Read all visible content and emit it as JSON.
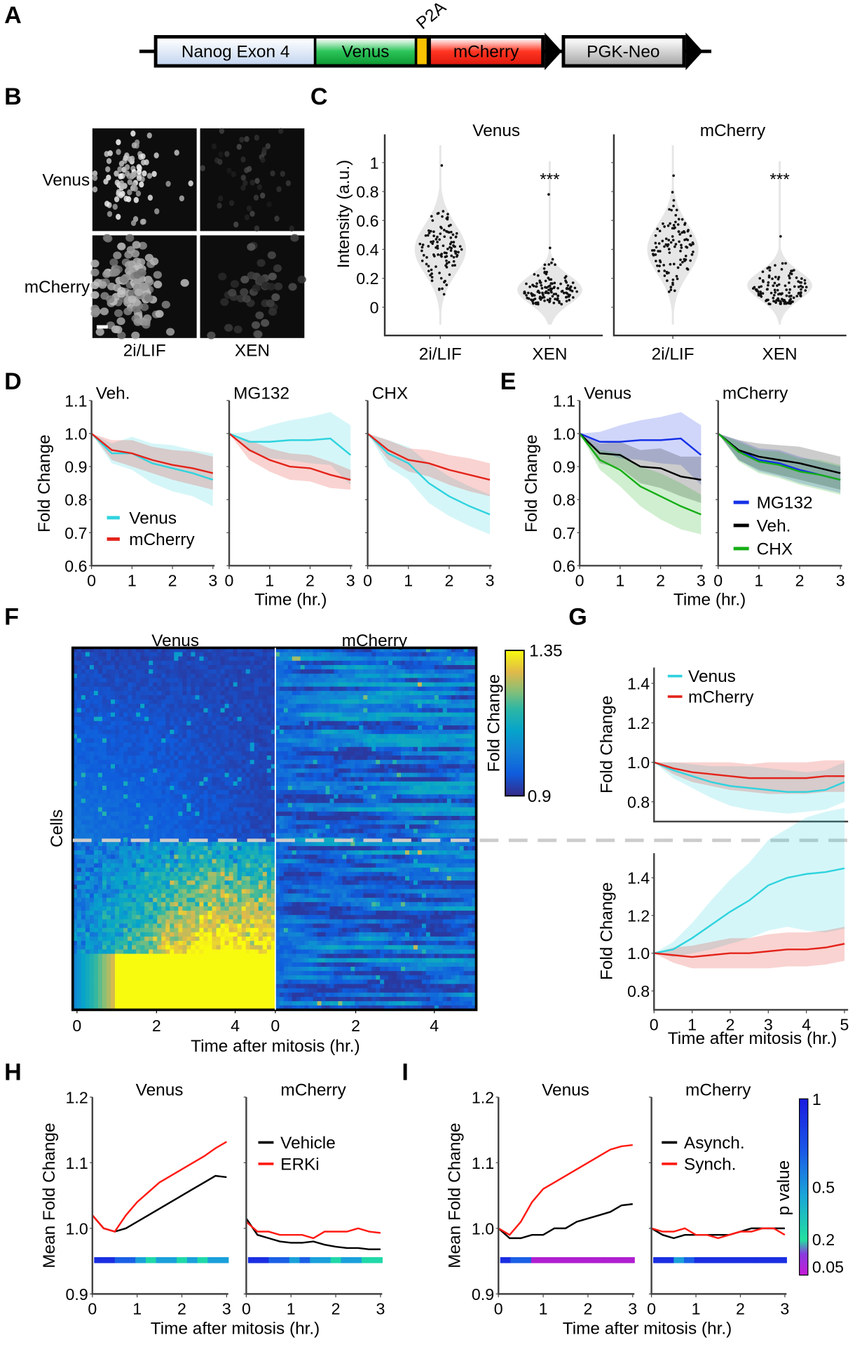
{
  "panel_labels": [
    "A",
    "B",
    "C",
    "D",
    "E",
    "F",
    "G",
    "H",
    "I"
  ],
  "construct": {
    "segments": [
      {
        "label": "Nanog Exon 4",
        "color": "#dce7f6"
      },
      {
        "label": "Venus",
        "color": "#1fb24a"
      },
      {
        "label": "",
        "color": "#f7c200"
      },
      {
        "label": "mCherry",
        "color": "#ff2b1c"
      }
    ],
    "p2a_label": "P2A",
    "neo_label": "PGK-Neo",
    "neo_color": "#cfcfcf"
  },
  "images": {
    "row_labels": [
      "Venus",
      "mCherry"
    ],
    "col_labels": [
      "2i/LIF",
      "XEN"
    ]
  },
  "colors": {
    "venus": "#2fd3de",
    "mcherry": "#e3241b",
    "mg132": "#1530e6",
    "veh": "#000000",
    "chx": "#15ae15",
    "dash": "#cccccc"
  },
  "chart_data": [
    {
      "id": "C",
      "type": "violin",
      "ylabel": "Intensity (a.u.)",
      "ylim": [
        -0.15,
        1.15
      ],
      "yticks": [
        "0",
        "0.2",
        "0.4",
        "0.6",
        "0.8",
        "1"
      ],
      "panels": [
        {
          "title": "Venus",
          "categories": [
            "2i/LIF",
            "XEN"
          ],
          "median": [
            0.4,
            0.12
          ],
          "max": [
            0.98,
            0.78
          ],
          "annotation": "***"
        },
        {
          "title": "mCherry",
          "categories": [
            "2i/LIF",
            "XEN"
          ],
          "median": [
            0.4,
            0.15
          ],
          "max": [
            0.91,
            0.49
          ],
          "annotation": "***"
        }
      ]
    },
    {
      "id": "D",
      "type": "line",
      "ylabel": "Fold Change",
      "xlabel": "Time (hr.)",
      "ylim": [
        0.6,
        1.1
      ],
      "yticks": [
        "1.1",
        "1.0",
        "0.9",
        "0.8",
        "0.7",
        "0.6"
      ],
      "xticks": [
        "0",
        "1",
        "2",
        "3"
      ],
      "x": [
        0,
        0.5,
        1,
        1.5,
        2,
        2.5,
        3
      ],
      "legend": [
        "Venus",
        "mCherry"
      ],
      "panels": [
        {
          "title": "Veh.",
          "series": [
            {
              "name": "Venus",
              "values": [
                1,
                0.94,
                0.94,
                0.91,
                0.895,
                0.88,
                0.86
              ],
              "sd": [
                0,
                0.03,
                0.05,
                0.06,
                0.07,
                0.07,
                0.08
              ]
            },
            {
              "name": "mCherry",
              "values": [
                1,
                0.95,
                0.94,
                0.92,
                0.905,
                0.895,
                0.88
              ],
              "sd": [
                0,
                0.03,
                0.04,
                0.04,
                0.045,
                0.05,
                0.05
              ]
            }
          ]
        },
        {
          "title": "MG132",
          "series": [
            {
              "name": "Venus",
              "values": [
                1,
                0.975,
                0.975,
                0.98,
                0.98,
                0.985,
                0.935
              ],
              "sd": [
                0,
                0.03,
                0.05,
                0.06,
                0.07,
                0.08,
                0.09
              ]
            },
            {
              "name": "mCherry",
              "values": [
                1,
                0.95,
                0.92,
                0.9,
                0.895,
                0.875,
                0.86
              ],
              "sd": [
                0,
                0.03,
                0.035,
                0.04,
                0.04,
                0.04,
                0.03
              ]
            }
          ]
        },
        {
          "title": "CHX",
          "series": [
            {
              "name": "Venus",
              "values": [
                1,
                0.94,
                0.91,
                0.85,
                0.81,
                0.78,
                0.755
              ],
              "sd": [
                0,
                0.04,
                0.05,
                0.06,
                0.06,
                0.06,
                0.06
              ]
            },
            {
              "name": "mCherry",
              "values": [
                1,
                0.95,
                0.92,
                0.91,
                0.89,
                0.875,
                0.86
              ],
              "sd": [
                0,
                0.03,
                0.035,
                0.04,
                0.045,
                0.05,
                0.05
              ]
            }
          ]
        }
      ]
    },
    {
      "id": "E",
      "type": "line",
      "ylabel": "Fold Change",
      "xlabel": "Time (hr.)",
      "ylim": [
        0.6,
        1.1
      ],
      "yticks": [
        "1.1",
        "1.0",
        "0.9",
        "0.8",
        "0.7",
        "0.6"
      ],
      "xticks": [
        "0",
        "1",
        "2",
        "3"
      ],
      "x": [
        0,
        0.5,
        1,
        1.5,
        2,
        2.5,
        3
      ],
      "legend": [
        "MG132",
        "Veh.",
        "CHX"
      ],
      "panels": [
        {
          "title": "Venus",
          "series": [
            {
              "name": "MG132",
              "values": [
                1,
                0.975,
                0.975,
                0.98,
                0.98,
                0.985,
                0.935
              ],
              "sd": [
                0,
                0.03,
                0.05,
                0.06,
                0.07,
                0.08,
                0.09
              ]
            },
            {
              "name": "Veh.",
              "values": [
                1,
                0.94,
                0.935,
                0.9,
                0.895,
                0.87,
                0.86
              ],
              "sd": [
                0,
                0.03,
                0.04,
                0.05,
                0.06,
                0.06,
                0.07
              ]
            },
            {
              "name": "CHX",
              "values": [
                1,
                0.92,
                0.89,
                0.84,
                0.81,
                0.78,
                0.755
              ],
              "sd": [
                0,
                0.03,
                0.05,
                0.06,
                0.07,
                0.07,
                0.06
              ]
            }
          ]
        },
        {
          "title": "mCherry",
          "series": [
            {
              "name": "MG132",
              "values": [
                1,
                0.95,
                0.92,
                0.91,
                0.89,
                0.875,
                0.86
              ],
              "sd": [
                0,
                0.03,
                0.035,
                0.04,
                0.04,
                0.04,
                0.04
              ]
            },
            {
              "name": "Veh.",
              "values": [
                1,
                0.95,
                0.93,
                0.92,
                0.91,
                0.895,
                0.88
              ],
              "sd": [
                0,
                0.03,
                0.04,
                0.045,
                0.05,
                0.05,
                0.05
              ]
            },
            {
              "name": "CHX",
              "values": [
                1,
                0.945,
                0.915,
                0.905,
                0.885,
                0.875,
                0.86
              ],
              "sd": [
                0,
                0.03,
                0.035,
                0.04,
                0.04,
                0.045,
                0.045
              ]
            }
          ]
        }
      ]
    },
    {
      "id": "F",
      "type": "heatmap",
      "columns": [
        "Venus",
        "mCherry"
      ],
      "ylabel": "Cells",
      "xlabel": "Time after mitosis (hr.)",
      "xticks": [
        "0",
        "2",
        "4"
      ],
      "colorbar_label": "Fold Change",
      "color_range": [
        0.9,
        1.35
      ],
      "colorbar_ticks": [
        "1.35",
        "0.9"
      ],
      "rows_above_divider": 45,
      "rows_below_divider": 39
    },
    {
      "id": "G",
      "type": "line",
      "ylabel": "Fold Change",
      "xlabel": "Time after mitosis (hr.)",
      "yticks": [
        "1.4",
        "1.2",
        "1.0",
        "0.8"
      ],
      "xticks": [
        "0",
        "1",
        "2",
        "3",
        "4",
        "5"
      ],
      "ylim": [
        0.7,
        1.5
      ],
      "x": [
        0,
        0.5,
        1,
        1.5,
        2,
        2.5,
        3,
        3.5,
        4,
        4.5,
        5
      ],
      "legend": [
        "Venus",
        "mCherry"
      ],
      "panels": [
        {
          "title": "",
          "series": [
            {
              "name": "Venus",
              "values": [
                1,
                0.96,
                0.93,
                0.9,
                0.88,
                0.87,
                0.86,
                0.85,
                0.85,
                0.86,
                0.9
              ],
              "sd": [
                0,
                0.04,
                0.06,
                0.08,
                0.1,
                0.11,
                0.11,
                0.11,
                0.1,
                0.1,
                0.1
              ]
            },
            {
              "name": "mCherry",
              "values": [
                1,
                0.97,
                0.95,
                0.94,
                0.93,
                0.92,
                0.92,
                0.92,
                0.92,
                0.93,
                0.93
              ],
              "sd": [
                0,
                0.03,
                0.05,
                0.06,
                0.07,
                0.07,
                0.08,
                0.08,
                0.08,
                0.08,
                0.08
              ]
            }
          ]
        },
        {
          "title": "",
          "series": [
            {
              "name": "Venus",
              "values": [
                1,
                1.02,
                1.08,
                1.15,
                1.22,
                1.28,
                1.36,
                1.4,
                1.42,
                1.43,
                1.45
              ],
              "sd": [
                0,
                0.04,
                0.08,
                0.13,
                0.17,
                0.2,
                0.24,
                0.26,
                0.3,
                0.32,
                0.32
              ]
            },
            {
              "name": "mCherry",
              "values": [
                1,
                0.99,
                0.98,
                0.99,
                1.0,
                1.0,
                1.01,
                1.02,
                1.02,
                1.03,
                1.05
              ],
              "sd": [
                0,
                0.04,
                0.06,
                0.07,
                0.08,
                0.08,
                0.09,
                0.09,
                0.09,
                0.09,
                0.09
              ]
            }
          ]
        }
      ]
    },
    {
      "id": "H",
      "type": "line",
      "ylabel": "Mean Fold Change",
      "xlabel": "Time after mitosis (hr.)",
      "yticks": [
        "1.2",
        "1.1",
        "1.0",
        "0.9"
      ],
      "xticks": [
        "0",
        "1",
        "2",
        "3"
      ],
      "ylim": [
        0.9,
        1.2
      ],
      "x": [
        0,
        0.25,
        0.5,
        0.75,
        1,
        1.25,
        1.5,
        1.75,
        2,
        2.25,
        2.5,
        2.75,
        3
      ],
      "legend": [
        "Vehicle",
        "ERKi"
      ],
      "panels": [
        {
          "title": "Venus",
          "series": [
            {
              "name": "Vehicle",
              "values": [
                1.02,
                1.0,
                0.995,
                1.0,
                1.01,
                1.02,
                1.03,
                1.04,
                1.05,
                1.06,
                1.07,
                1.08,
                1.078
              ]
            },
            {
              "name": "ERKi",
              "values": [
                1.02,
                1.0,
                0.995,
                1.02,
                1.04,
                1.055,
                1.07,
                1.08,
                1.09,
                1.1,
                1.11,
                1.122,
                1.132
              ]
            }
          ],
          "p_values": [
            0.7,
            0.6,
            0.45,
            0.35,
            0.25,
            0.2,
            0.3,
            0.22,
            0.18,
            0.25,
            0.2,
            0.3,
            0.25
          ]
        },
        {
          "title": "mCherry",
          "series": [
            {
              "name": "Vehicle",
              "values": [
                1.015,
                0.99,
                0.985,
                0.98,
                0.978,
                0.978,
                0.98,
                0.975,
                0.972,
                0.97,
                0.97,
                0.968,
                0.968
              ]
            },
            {
              "name": "ERKi",
              "values": [
                1.01,
                0.995,
                0.995,
                0.99,
                0.99,
                0.99,
                0.985,
                0.995,
                0.995,
                0.995,
                1.0,
                0.995,
                0.993
              ]
            }
          ],
          "p_values": [
            0.7,
            0.6,
            0.4,
            0.5,
            0.3,
            0.35,
            0.25,
            0.3,
            0.2,
            0.25,
            0.22,
            0.2,
            0.2
          ]
        }
      ]
    },
    {
      "id": "I",
      "type": "line",
      "ylabel": "Mean Fold Change",
      "xlabel": "Time after mitosis (hr.)",
      "yticks": [
        "1.2",
        "1.1",
        "1.0",
        "0.9"
      ],
      "xticks": [
        "0",
        "1",
        "2",
        "3"
      ],
      "ylim": [
        0.9,
        1.2
      ],
      "x": [
        0,
        0.25,
        0.5,
        0.75,
        1,
        1.25,
        1.5,
        1.75,
        2,
        2.25,
        2.5,
        2.75,
        3
      ],
      "legend": [
        "Asynch.",
        "Synch."
      ],
      "colorbar_label": "p value",
      "colorbar_ticks": [
        "1",
        "0.5",
        "0.2",
        "0.05"
      ],
      "panels": [
        {
          "title": "Venus",
          "series": [
            {
              "name": "Asynch.",
              "values": [
                1.0,
                0.985,
                0.985,
                0.99,
                0.99,
                1.0,
                1.0,
                1.01,
                1.015,
                1.02,
                1.025,
                1.035,
                1.037
              ]
            },
            {
              "name": "Synch.",
              "values": [
                1.0,
                0.99,
                1.01,
                1.04,
                1.06,
                1.07,
                1.08,
                1.09,
                1.1,
                1.11,
                1.12,
                1.125,
                1.127
              ]
            }
          ],
          "p_values": [
            0.6,
            0.5,
            0.4,
            0.04,
            0.03,
            0.03,
            0.03,
            0.03,
            0.03,
            0.03,
            0.03,
            0.03,
            0.03
          ]
        },
        {
          "title": "mCherry",
          "series": [
            {
              "name": "Asynch.",
              "values": [
                1.0,
                0.99,
                0.985,
                0.99,
                0.99,
                0.99,
                0.99,
                0.99,
                0.995,
                1.0,
                1.0,
                1.0,
                1.0
              ]
            },
            {
              "name": "Synch.",
              "values": [
                1.0,
                0.995,
                0.995,
                1.0,
                0.99,
                0.99,
                0.985,
                0.99,
                0.995,
                0.995,
                1.0,
                1.0,
                0.99
              ]
            }
          ],
          "p_values": [
            0.7,
            0.6,
            0.3,
            0.5,
            0.6,
            0.7,
            0.6,
            0.7,
            0.8,
            0.7,
            0.6,
            0.7,
            0.7
          ]
        }
      ]
    }
  ]
}
